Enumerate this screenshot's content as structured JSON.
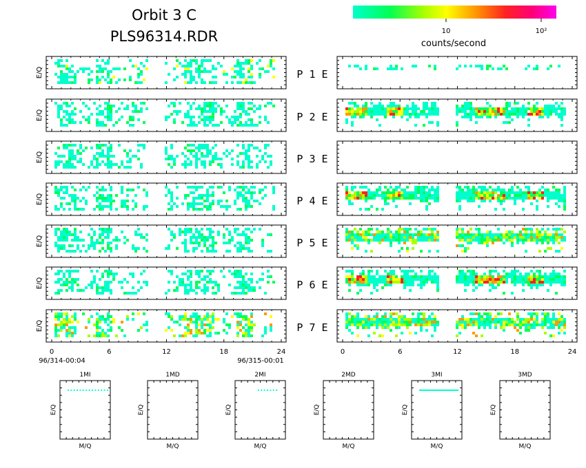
{
  "header": {
    "title": "Orbit 3 C",
    "subtitle": "PLS96314.RDR"
  },
  "colorbar": {
    "label": "counts/second",
    "tick_labels": [
      "10",
      "10²"
    ],
    "colors": [
      "#00ffcc",
      "#00ff55",
      "#aaff00",
      "#ffff00",
      "#ff9900",
      "#ff2222",
      "#ff0077",
      "#ff00ee"
    ]
  },
  "panels": {
    "ylabel": "E/Q",
    "row_labels": [
      "P 1 E",
      "P 2 E",
      "P 3 E",
      "P 4 E",
      "P 5 E",
      "P 6 E",
      "P 7 E"
    ],
    "x_ticks": [
      "0",
      "6",
      "12",
      "18",
      "24"
    ],
    "start_time": "96/314-00:04",
    "end_time": "96/315-00:01"
  },
  "bottom_panels": {
    "titles": [
      "1MI",
      "1MD",
      "2MI",
      "2MD",
      "3MI",
      "3MD"
    ],
    "xlabel": "M/Q",
    "ylabel": "E/Q"
  },
  "chart_data": {
    "type": "heatmap",
    "title": "Orbit 3 C",
    "subtitle": "PLS96314.RDR",
    "x_unit": "hours",
    "xlim": [
      0,
      24
    ],
    "x_ticks": [
      0,
      6,
      12,
      18,
      24
    ],
    "ylabel": "E/Q",
    "color_scale": "log",
    "color_label": "counts/second",
    "color_ticks": [
      10,
      100
    ],
    "data_gap_hours": [
      10,
      12
    ],
    "panels": [
      {
        "label": "P 1",
        "column": "left",
        "coverage": "sparse",
        "peak_level": "low-medium"
      },
      {
        "label": "P 2",
        "column": "left",
        "coverage": "sparse",
        "peak_level": "low"
      },
      {
        "label": "P 3",
        "column": "left",
        "coverage": "sparse",
        "peak_level": "low"
      },
      {
        "label": "P 4",
        "column": "left",
        "coverage": "sparse",
        "peak_level": "low"
      },
      {
        "label": "P 5",
        "column": "left",
        "coverage": "sparse",
        "peak_level": "low"
      },
      {
        "label": "P 6",
        "column": "left",
        "coverage": "sparse",
        "peak_level": "low"
      },
      {
        "label": "P 7",
        "column": "left",
        "coverage": "sparse",
        "peak_level": "medium"
      },
      {
        "label": "P 1",
        "column": "right",
        "coverage": "very sparse",
        "peak_level": "low"
      },
      {
        "label": "P 2",
        "column": "right",
        "coverage": "band",
        "peak_level": "high"
      },
      {
        "label": "P 3",
        "column": "right",
        "coverage": "empty",
        "peak_level": "none"
      },
      {
        "label": "P 4",
        "column": "right",
        "coverage": "band",
        "peak_level": "high"
      },
      {
        "label": "P 5",
        "column": "right",
        "coverage": "band",
        "peak_level": "medium"
      },
      {
        "label": "P 6",
        "column": "right",
        "coverage": "band",
        "peak_level": "high"
      },
      {
        "label": "P 7",
        "column": "right",
        "coverage": "band",
        "peak_level": "medium"
      }
    ],
    "small_panels": [
      {
        "title": "1MI",
        "xlabel": "M/Q",
        "ylabel": "E/Q",
        "has_points": true
      },
      {
        "title": "1MD",
        "xlabel": "M/Q",
        "ylabel": "E/Q",
        "has_points": false
      },
      {
        "title": "2MI",
        "xlabel": "M/Q",
        "ylabel": "E/Q",
        "has_points": true
      },
      {
        "title": "2MD",
        "xlabel": "M/Q",
        "ylabel": "E/Q",
        "has_points": false
      },
      {
        "title": "3MI",
        "xlabel": "M/Q",
        "ylabel": "E/Q",
        "has_points": true
      },
      {
        "title": "3MD",
        "xlabel": "M/Q",
        "ylabel": "E/Q",
        "has_points": false
      }
    ]
  }
}
